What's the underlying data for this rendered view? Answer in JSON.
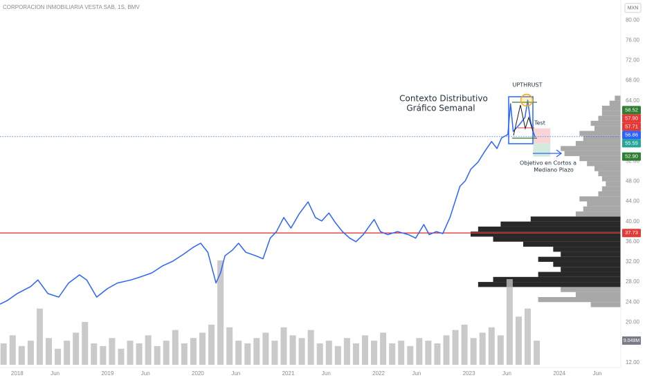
{
  "header": {
    "symbol": "CORPORACION INMOBILIARIA VESTA SAB, 1S, BMV",
    "currency": "MXN"
  },
  "chart_data": {
    "type": "line",
    "xlim": [
      2017.81,
      2024.68
    ],
    "ylim": [
      11,
      84
    ],
    "grid": false,
    "xticks": [
      2018,
      {
        "value": 2018.42,
        "label": "Jun"
      },
      2019,
      {
        "value": 2019.42,
        "label": "Jun"
      },
      2020,
      {
        "value": 2020.42,
        "label": "Jun"
      },
      2021,
      {
        "value": 2021.42,
        "label": "Jun"
      },
      2022,
      {
        "value": 2022.42,
        "label": "Jun"
      },
      2023,
      {
        "value": 2023.42,
        "label": "Jun"
      },
      2024,
      {
        "value": 2024.42,
        "label": "Jun"
      }
    ],
    "yticks": [
      {
        "value": 12,
        "label": "12.00"
      },
      {
        "value": 20,
        "label": "20.00"
      },
      {
        "value": 24,
        "label": "24.00"
      },
      {
        "value": 28,
        "label": "28.00"
      },
      {
        "value": 32,
        "label": "32.00"
      },
      {
        "value": 36,
        "label": "36.00"
      },
      {
        "value": 40,
        "label": "40.00"
      },
      {
        "value": 44,
        "label": "44.00"
      },
      {
        "value": 48,
        "label": "48.00"
      },
      {
        "value": 52,
        "label": "52.00"
      },
      {
        "value": 64,
        "label": "64.00"
      },
      {
        "value": 68,
        "label": "68.00"
      },
      {
        "value": 72,
        "label": "72.00"
      },
      {
        "value": 76,
        "label": "76.00"
      },
      {
        "value": 80,
        "label": "80.00"
      }
    ],
    "price": {
      "color": "#2962ff",
      "x": [
        2017.81,
        2017.89,
        2018.0,
        2018.15,
        2018.23,
        2018.34,
        2018.46,
        2018.57,
        2018.69,
        2018.77,
        2018.88,
        2019.0,
        2019.11,
        2019.26,
        2019.38,
        2019.49,
        2019.61,
        2019.72,
        2019.84,
        2019.95,
        2020.03,
        2020.11,
        2020.2,
        2020.25,
        2020.3,
        2020.38,
        2020.45,
        2020.53,
        2020.64,
        2020.72,
        2020.8,
        2020.87,
        2020.95,
        2021.03,
        2021.12,
        2021.22,
        2021.3,
        2021.37,
        2021.45,
        2021.52,
        2021.6,
        2021.68,
        2021.75,
        2021.83,
        2021.95,
        2022.02,
        2022.1,
        2022.21,
        2022.33,
        2022.41,
        2022.5,
        2022.56,
        2022.64,
        2022.71,
        2022.79,
        2022.85,
        2022.9,
        2022.96,
        2023.02,
        2023.1,
        2023.17,
        2023.25,
        2023.31,
        2023.36,
        2023.43,
        2023.46,
        2023.49,
        2023.56,
        2023.62,
        2023.65,
        2023.68,
        2023.71,
        2023.73
      ],
      "values": [
        23.6,
        24.3,
        25.7,
        27.1,
        28.4,
        25.7,
        25.0,
        27.8,
        29.4,
        28.4,
        25.0,
        26.7,
        27.8,
        28.4,
        29.1,
        29.8,
        31.2,
        32.1,
        33.5,
        34.9,
        35.7,
        33.9,
        27.8,
        29.8,
        33.2,
        34.3,
        35.7,
        33.9,
        33.2,
        32.6,
        36.7,
        38.0,
        40.8,
        38.7,
        41.5,
        43.9,
        40.8,
        40.1,
        41.7,
        39.8,
        38.0,
        36.7,
        36.0,
        37.4,
        40.4,
        38.0,
        37.4,
        38.0,
        37.4,
        36.7,
        39.4,
        37.4,
        38.0,
        37.6,
        40.8,
        44.2,
        47.0,
        48.1,
        50.4,
        51.8,
        53.8,
        55.9,
        54.5,
        56.6,
        57.3,
        63.4,
        57.9,
        59.3,
        60.7,
        64.1,
        60.0,
        57.9,
        56.8
      ]
    },
    "volume": {
      "color": "#bdbdbd",
      "ylim": [
        0,
        40
      ],
      "x": [
        2017.85,
        2017.95,
        2018.05,
        2018.15,
        2018.25,
        2018.35,
        2018.45,
        2018.55,
        2018.65,
        2018.75,
        2018.85,
        2018.95,
        2019.05,
        2019.15,
        2019.25,
        2019.35,
        2019.45,
        2019.55,
        2019.65,
        2019.75,
        2019.85,
        2019.95,
        2020.05,
        2020.15,
        2020.25,
        2020.35,
        2020.45,
        2020.55,
        2020.65,
        2020.75,
        2020.85,
        2020.95,
        2021.05,
        2021.15,
        2021.25,
        2021.35,
        2021.45,
        2021.55,
        2021.65,
        2021.75,
        2021.85,
        2021.95,
        2022.05,
        2022.15,
        2022.25,
        2022.35,
        2022.45,
        2022.55,
        2022.65,
        2022.75,
        2022.85,
        2022.95,
        2023.05,
        2023.15,
        2023.25,
        2023.35,
        2023.45,
        2023.55,
        2023.65,
        2023.75
      ],
      "values": [
        8,
        11,
        7,
        9,
        21,
        10,
        6,
        9,
        12,
        16,
        8,
        7,
        10,
        6,
        9,
        8,
        11,
        7,
        9,
        13,
        8,
        10,
        12,
        15,
        39,
        14,
        9,
        8,
        10,
        12,
        9,
        14,
        11,
        10,
        13,
        8,
        9,
        7,
        10,
        8,
        11,
        9,
        12,
        8,
        9,
        7,
        10,
        9,
        8,
        11,
        13,
        15,
        10,
        12,
        14,
        11,
        32,
        18,
        21,
        9
      ],
      "last": {
        "value": 9.049,
        "label": "9.049M"
      }
    },
    "volume_profile": {
      "color": "#9e9e9e",
      "value_area": {
        "range": [
          27,
          41
        ],
        "color": "#111111"
      },
      "bins": [
        23,
        24,
        25,
        26,
        27,
        28,
        29,
        30,
        31,
        32,
        33,
        34,
        35,
        36,
        37,
        38,
        39,
        40,
        41,
        42,
        43,
        44,
        45,
        46,
        47,
        48,
        49,
        50,
        51,
        52,
        53,
        54,
        55,
        56,
        57,
        58,
        59,
        60,
        61,
        62,
        63,
        64,
        65
      ],
      "values": [
        40,
        110,
        60,
        80,
        190,
        170,
        110,
        80,
        90,
        110,
        80,
        90,
        130,
        170,
        200,
        190,
        160,
        120,
        60,
        50,
        45,
        55,
        30,
        25,
        20,
        25,
        30,
        35,
        45,
        55,
        75,
        80,
        60,
        50,
        55,
        35,
        40,
        30,
        25,
        25,
        15,
        8
      ]
    },
    "price_labels": [
      {
        "value": 58.52,
        "label": "58.52",
        "color": "#2e7d32"
      },
      {
        "value": 57.9,
        "label": "57.90",
        "color": "#e53935"
      },
      {
        "value": 57.71,
        "label": "57.71",
        "color": "#e53935"
      },
      {
        "value": 56.86,
        "label": "56.86",
        "color": "#2962ff",
        "line": "dotted"
      },
      {
        "value": 55.55,
        "label": "55.55",
        "color": "#26a69a"
      },
      {
        "value": 52.9,
        "label": "52.90",
        "color": "#2e7d32"
      },
      {
        "value": 37.73,
        "label": "37.73",
        "color": "#e53935",
        "line": "solid"
      }
    ],
    "position": {
      "x": [
        2023.71,
        2023.9
      ],
      "stop": 58.52,
      "entry": 55.55,
      "target": 52.9,
      "stop_color": "#f8c9cc",
      "target_color": "#c8e6d4"
    },
    "annotations": {
      "context": "Contexto Distributivo",
      "context_sub": "Gráfico Semanal",
      "upthrust": "UPTHRUST",
      "test": "Test",
      "target_1": "Objetivo en Cortos a",
      "target_2": "Mediano Plazo"
    }
  }
}
